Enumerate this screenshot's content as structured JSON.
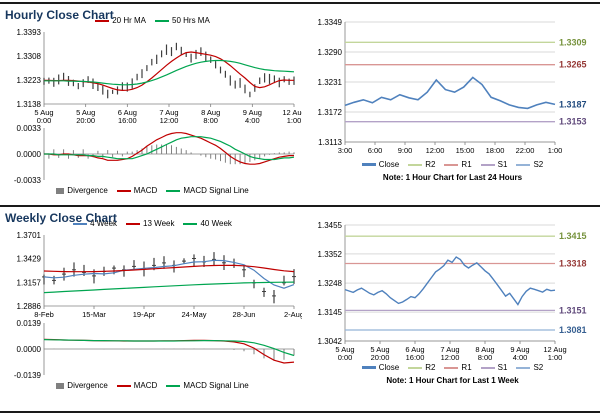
{
  "hourly": {
    "title": "Hourly Close Chart",
    "note": "Note: 1 Hour Chart for Last 24 Hours",
    "ma_legend": [
      {
        "label": "20 Hr MA",
        "color": "#C00000",
        "type": "line"
      },
      {
        "label": "50 Hrs MA",
        "color": "#00A550",
        "type": "line"
      }
    ],
    "macd_legend": [
      {
        "label": "Divergence",
        "color": "#808080",
        "type": "bar"
      },
      {
        "label": "MACD",
        "color": "#C00000",
        "type": "line"
      },
      {
        "label": "MACD Signal Line",
        "color": "#00A550",
        "type": "line"
      }
    ],
    "day_legend": [
      {
        "label": "Close",
        "color": "#4F81BD",
        "type": "line-thick"
      },
      {
        "label": "R2",
        "color": "#C3D69B",
        "type": "line"
      },
      {
        "label": "R1",
        "color": "#D99694",
        "type": "line"
      },
      {
        "label": "S1",
        "color": "#B3A2C7",
        "type": "line"
      },
      {
        "label": "S2",
        "color": "#95B3D7",
        "type": "line"
      }
    ]
  },
  "weekly": {
    "title": "Weekly Close Chart",
    "note": "Note: 1 Hour Chart for Last 1 Week",
    "ma_legend": [
      {
        "label": "4 Week",
        "color": "#4F81BD",
        "type": "line"
      },
      {
        "label": "13 Week",
        "color": "#C00000",
        "type": "line"
      },
      {
        "label": "40 Week",
        "color": "#00A550",
        "type": "line"
      }
    ],
    "macd_legend": [
      {
        "label": "Divergence",
        "color": "#808080",
        "type": "bar"
      },
      {
        "label": "MACD",
        "color": "#C00000",
        "type": "line"
      },
      {
        "label": "MACD Signal Line",
        "color": "#00A550",
        "type": "line"
      }
    ],
    "day_legend": [
      {
        "label": "Close",
        "color": "#4F81BD",
        "type": "line-thick"
      },
      {
        "label": "R2",
        "color": "#C3D69B",
        "type": "line"
      },
      {
        "label": "R1",
        "color": "#D99694",
        "type": "line"
      },
      {
        "label": "S1",
        "color": "#B3A2C7",
        "type": "line"
      },
      {
        "label": "S2",
        "color": "#95B3D7",
        "type": "line"
      }
    ]
  },
  "chart_data": [
    {
      "id": "hourly-price",
      "type": "candlestick",
      "title": "Hourly Close Chart",
      "x_ticks": [
        "5 Aug\n0:00",
        "5 Aug\n20:00",
        "6 Aug\n16:00",
        "7 Aug\n12:00",
        "8 Aug\n8:00",
        "9 Aug\n4:00",
        "12 Aug\n1:00"
      ],
      "y_ticks": [
        1.3393,
        1.3308,
        1.3223,
        1.3138
      ],
      "series": [
        {
          "name": "Close",
          "type": "candle",
          "color": "#3F3F3F",
          "tick": 0.0013,
          "values": [
            1.3225,
            1.322,
            1.3215,
            1.3224,
            1.323,
            1.3221,
            1.3212,
            1.3206,
            1.3215,
            1.3221,
            1.321,
            1.3196,
            1.3186,
            1.3176,
            1.3181,
            1.319,
            1.32,
            1.3196,
            1.321,
            1.3228,
            1.3248,
            1.3268,
            1.3288,
            1.3298,
            1.331,
            1.333,
            1.3322,
            1.3341,
            1.3332,
            1.3312,
            1.3302,
            1.3312,
            1.332,
            1.3306,
            1.3292,
            1.3281,
            1.3262,
            1.3242,
            1.3222,
            1.3202,
            1.3212,
            1.3192,
            1.3172,
            1.32,
            1.3219,
            1.323,
            1.3226,
            1.3221,
            1.3216,
            1.3226,
            1.3221,
            1.3223
          ]
        },
        {
          "name": "20 Hr MA",
          "type": "line",
          "color": "#C00000",
          "values": [
            1.3222,
            1.3222,
            1.3221,
            1.3221,
            1.3222,
            1.3222,
            1.3221,
            1.3219,
            1.3217,
            1.3216,
            1.3213,
            1.321,
            1.3205,
            1.3199,
            1.3193,
            1.3188,
            1.3186,
            1.3187,
            1.319,
            1.3196,
            1.3205,
            1.3217,
            1.323,
            1.3245,
            1.326,
            1.3275,
            1.3289,
            1.3301,
            1.3312,
            1.332,
            1.3322,
            1.332,
            1.3317,
            1.3314,
            1.3311,
            1.3306,
            1.3298,
            1.3287,
            1.3274,
            1.3259,
            1.3244,
            1.323,
            1.3214,
            1.32,
            1.3196,
            1.3199,
            1.3206,
            1.3214,
            1.3221,
            1.3223,
            1.3222,
            1.3222
          ]
        },
        {
          "name": "50 Hrs MA",
          "type": "line",
          "color": "#00A550",
          "values": [
            1.322,
            1.322,
            1.322,
            1.322,
            1.322,
            1.3219,
            1.3219,
            1.3218,
            1.3218,
            1.3217,
            1.3216,
            1.3214,
            1.3212,
            1.321,
            1.3208,
            1.3207,
            1.3206,
            1.3206,
            1.3207,
            1.3209,
            1.3212,
            1.3216,
            1.3221,
            1.3227,
            1.3234,
            1.3241,
            1.3249,
            1.3257,
            1.3264,
            1.3271,
            1.3277,
            1.3282,
            1.3286,
            1.3289,
            1.3291,
            1.3292,
            1.3292,
            1.3291,
            1.3289,
            1.3286,
            1.3282,
            1.3277,
            1.3272,
            1.3267,
            1.3263,
            1.326,
            1.3258,
            1.3256,
            1.3255,
            1.3254,
            1.3253,
            1.3252
          ]
        }
      ]
    },
    {
      "id": "hourly-macd",
      "type": "macd",
      "y_ticks": [
        0.0033,
        0,
        -0.0033
      ],
      "series": [
        {
          "name": "Divergence",
          "type": "bars",
          "color": "#808080",
          "values": [
            0.0005,
            -0.0006,
            0.0006,
            -0.0005,
            0.0006,
            -0.0006,
            0.0005,
            -0.0005,
            0.0006,
            -0.0006,
            -0.0004,
            0.0004,
            -0.0005,
            0.0005,
            -0.0004,
            0.0004,
            -0.0003,
            0.0003,
            0.0003,
            0.0005,
            0.0007,
            0.001,
            0.0011,
            0.0012,
            0.0012,
            0.0012,
            0.0011,
            0.0009,
            0.0007,
            0.0005,
            0.0002,
            0.0,
            -0.0002,
            -0.0004,
            -0.0006,
            -0.0007,
            -0.0009,
            -0.0011,
            -0.0013,
            -0.0013,
            -0.0013,
            -0.0012,
            -0.001,
            -0.0008,
            -0.0006,
            -0.0003,
            -0.0001,
            0.0001,
            0.0002,
            0.0002,
            0.0003,
            0.0002
          ]
        },
        {
          "name": "MACD",
          "type": "line",
          "color": "#C00000",
          "values": [
            0.0,
            0.0,
            -0.0001,
            -0.0001,
            0.0,
            0.0,
            -0.0001,
            -0.0002,
            -0.0002,
            -0.0002,
            -0.0003,
            -0.0005,
            -0.0006,
            -0.0008,
            -0.0008,
            -0.0008,
            -0.0007,
            -0.0006,
            -0.0003,
            0.0001,
            0.0005,
            0.001,
            0.0014,
            0.0018,
            0.0021,
            0.0024,
            0.0026,
            0.0027,
            0.0027,
            0.0026,
            0.0024,
            0.0022,
            0.002,
            0.0017,
            0.0014,
            0.0011,
            0.0007,
            0.0002,
            -0.0003,
            -0.0007,
            -0.001,
            -0.0012,
            -0.0013,
            -0.0013,
            -0.0012,
            -0.001,
            -0.0008,
            -0.0006,
            -0.0004,
            -0.0003,
            -0.0002,
            -0.0002
          ]
        },
        {
          "name": "MACD Signal Line",
          "type": "line",
          "color": "#00A550",
          "values": [
            0.0,
            0.0,
            0.0,
            -0.0001,
            -0.0001,
            -0.0001,
            -0.0001,
            -0.0001,
            -0.0001,
            -0.0002,
            -0.0002,
            -0.0003,
            -0.0003,
            -0.0004,
            -0.0005,
            -0.0006,
            -0.0006,
            -0.0006,
            -0.0006,
            -0.0004,
            -0.0002,
            0.0,
            0.0003,
            0.0006,
            0.0009,
            0.0012,
            0.0015,
            0.0018,
            0.002,
            0.0021,
            0.0022,
            0.0022,
            0.0022,
            0.0021,
            0.002,
            0.0018,
            0.0016,
            0.0013,
            0.001,
            0.0006,
            0.0003,
            0.0,
            -0.0003,
            -0.0005,
            -0.0006,
            -0.0007,
            -0.0007,
            -0.0007,
            -0.0006,
            -0.0005,
            -0.0005,
            -0.0004
          ]
        }
      ]
    },
    {
      "id": "hourly-day",
      "type": "line",
      "x_ticks": [
        "3:00",
        "6:00",
        "9:00",
        "12:00",
        "15:00",
        "18:00",
        "22:00",
        "1:00"
      ],
      "y_ticks": [
        1.3349,
        1.329,
        1.3231,
        1.3172,
        1.3113
      ],
      "series": [
        {
          "name": "R2",
          "type": "level",
          "color": "#C3D69B",
          "value": 1.3309
        },
        {
          "name": "R1",
          "type": "level",
          "color": "#D99694",
          "value": 1.3265
        },
        {
          "name": "S1",
          "type": "level",
          "color": "#B3A2C7",
          "value": 1.3153
        },
        {
          "name": "Close",
          "type": "line",
          "color": "#4F81BD",
          "width": 1.6,
          "values": [
            1.3185,
            1.3191,
            1.3196,
            1.319,
            1.3201,
            1.3196,
            1.3206,
            1.32,
            1.3196,
            1.3211,
            1.3235,
            1.3216,
            1.3211,
            1.3221,
            1.324,
            1.3226,
            1.3201,
            1.3194,
            1.3186,
            1.3181,
            1.3179,
            1.3186,
            1.3191,
            1.3187
          ]
        }
      ],
      "right_labels": [
        {
          "value": 1.3309,
          "color": "#76923C"
        },
        {
          "value": 1.3265,
          "color": "#953735"
        },
        {
          "value": 1.3187,
          "color": "#1F497D"
        },
        {
          "value": 1.3153,
          "color": "#604A7B"
        }
      ]
    },
    {
      "id": "weekly-price",
      "type": "candlestick",
      "title": "Weekly Close Chart",
      "x_ticks": [
        "8-Feb",
        "15-Mar",
        "19-Apr",
        "24-May",
        "28-Jun",
        "2-Aug"
      ],
      "y_ticks": [
        1.3701,
        1.3429,
        1.3157,
        1.2886
      ],
      "series": [
        {
          "name": "Close",
          "type": "candle",
          "color": "#3F3F3F",
          "tick": 0.006,
          "caps": true,
          "values": [
            1.322,
            1.318,
            1.3252,
            1.3301,
            1.3272,
            1.3232,
            1.3282,
            1.3321,
            1.3302,
            1.3341,
            1.3312,
            1.3352,
            1.3381,
            1.3352,
            1.3401,
            1.3431,
            1.3392,
            1.3421,
            1.3382,
            1.3352,
            1.3302,
            1.3152,
            1.3052,
            1.3002,
            1.3152,
            1.3223
          ]
        },
        {
          "name": "4 Week",
          "type": "line",
          "color": "#4F81BD",
          "values": [
            1.322,
            1.321,
            1.3217,
            1.3238,
            1.3251,
            1.3259,
            1.3255,
            1.3267,
            1.3297,
            1.3307,
            1.3319,
            1.3327,
            1.3339,
            1.3349,
            1.3372,
            1.3391,
            1.3394,
            1.3411,
            1.3407,
            1.3387,
            1.3359,
            1.3297,
            1.3202,
            1.3127,
            1.309,
            1.3132
          ]
        },
        {
          "name": "13 Week",
          "type": "line",
          "color": "#C00000",
          "values": [
            1.3288,
            1.3284,
            1.3281,
            1.328,
            1.328,
            1.3281,
            1.3284,
            1.3288,
            1.3293,
            1.3299,
            1.3306,
            1.3313,
            1.332,
            1.3327,
            1.3334,
            1.3341,
            1.3347,
            1.3351,
            1.3353,
            1.3352,
            1.3347,
            1.3337,
            1.3322,
            1.3305,
            1.329,
            1.3281
          ]
        },
        {
          "name": "40 Week",
          "type": "line",
          "color": "#00A550",
          "values": [
            1.304,
            1.3046,
            1.3052,
            1.3058,
            1.3064,
            1.307,
            1.3076,
            1.3082,
            1.3088,
            1.3094,
            1.31,
            1.3106,
            1.3112,
            1.3118,
            1.3124,
            1.3129,
            1.3134,
            1.3139,
            1.3143,
            1.3147,
            1.3151,
            1.3154,
            1.3156,
            1.3158,
            1.3159,
            1.316
          ]
        }
      ]
    },
    {
      "id": "weekly-macd",
      "type": "macd",
      "y_ticks": [
        0.0139,
        0,
        -0.0139
      ],
      "series": [
        {
          "name": "Divergence",
          "type": "bars",
          "color": "#808080",
          "values": [
            0.0002,
            0.0001,
            0.0,
            0.0,
            0.0,
            0.0,
            -0.0001,
            0.0,
            -0.0001,
            0.0,
            0.0,
            0.0,
            0.0001,
            0.0001,
            0.0001,
            0.0002,
            0.0001,
            0.0,
            -0.0001,
            -0.0005,
            -0.0012,
            -0.0028,
            -0.005,
            -0.0062,
            -0.0057,
            -0.0035
          ]
        },
        {
          "name": "MACD",
          "type": "line",
          "color": "#C00000",
          "values": [
            0.0052,
            0.005,
            0.0048,
            0.0047,
            0.0046,
            0.0045,
            0.0044,
            0.0044,
            0.0043,
            0.0043,
            0.0043,
            0.0043,
            0.0044,
            0.0044,
            0.0045,
            0.0046,
            0.0046,
            0.0045,
            0.0043,
            0.0038,
            0.0028,
            0.0005,
            -0.003,
            -0.006,
            -0.0075,
            -0.007
          ]
        },
        {
          "name": "MACD Signal Line",
          "type": "line",
          "color": "#00A550",
          "values": [
            0.005,
            0.0049,
            0.0048,
            0.0047,
            0.0046,
            0.0045,
            0.0045,
            0.0044,
            0.0044,
            0.0043,
            0.0043,
            0.0043,
            0.0043,
            0.0043,
            0.0044,
            0.0044,
            0.0045,
            0.0045,
            0.0044,
            0.0043,
            0.004,
            0.0033,
            0.002,
            0.0002,
            -0.0018,
            -0.0035
          ]
        }
      ]
    },
    {
      "id": "weekly-day",
      "type": "line",
      "x_ticks": [
        "5 Aug\n0:00",
        "5 Aug\n20:00",
        "6 Aug\n16:00",
        "7 Aug\n12:00",
        "8 Aug\n8:00",
        "9 Aug\n4:00",
        "12 Aug\n1:00"
      ],
      "y_ticks": [
        1.3455,
        1.3352,
        1.3248,
        1.3145,
        1.3042
      ],
      "series": [
        {
          "name": "R2",
          "type": "level",
          "color": "#C3D69B",
          "value": 1.3415
        },
        {
          "name": "R1",
          "type": "level",
          "color": "#D99694",
          "value": 1.3318
        },
        {
          "name": "S1",
          "type": "level",
          "color": "#B3A2C7",
          "value": 1.3151
        },
        {
          "name": "S2",
          "type": "level",
          "color": "#95B3D7",
          "value": 1.3081
        },
        {
          "name": "Close",
          "type": "line",
          "color": "#4F81BD",
          "width": 1.4,
          "values": [
            1.3225,
            1.322,
            1.3215,
            1.3224,
            1.323,
            1.3221,
            1.3212,
            1.3206,
            1.3215,
            1.3221,
            1.321,
            1.3196,
            1.3186,
            1.3176,
            1.3181,
            1.319,
            1.32,
            1.3196,
            1.321,
            1.3228,
            1.3248,
            1.3268,
            1.3288,
            1.3298,
            1.331,
            1.333,
            1.3322,
            1.3341,
            1.3332,
            1.3312,
            1.3302,
            1.3312,
            1.332,
            1.3306,
            1.3292,
            1.3281,
            1.3262,
            1.3242,
            1.3222,
            1.3202,
            1.3212,
            1.3192,
            1.3172,
            1.32,
            1.3219,
            1.323,
            1.3226,
            1.3221,
            1.3216,
            1.3226,
            1.3221,
            1.3223
          ]
        }
      ],
      "right_labels": [
        {
          "value": 1.3415,
          "color": "#76923C"
        },
        {
          "value": 1.3318,
          "color": "#953735"
        },
        {
          "value": 1.3151,
          "color": "#604A7B"
        },
        {
          "value": 1.3081,
          "color": "#376092"
        }
      ]
    }
  ]
}
